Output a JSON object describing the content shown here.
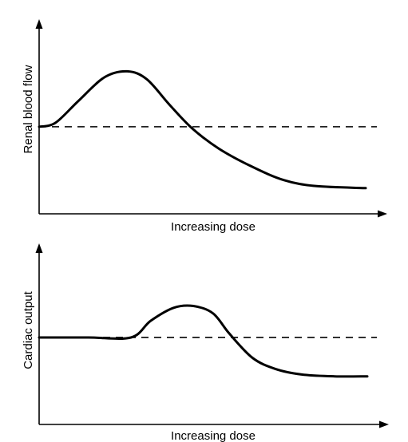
{
  "chart_data": [
    {
      "type": "line",
      "xlabel": "Increasing dose",
      "ylabel": "Renal blood flow",
      "title": "",
      "grid": false,
      "x_ticks": "none",
      "y_ticks": "none",
      "xlim": [
        0,
        1
      ],
      "ylim": [
        0,
        1
      ],
      "baseline": 0.44,
      "series": [
        {
          "style": "solid",
          "x": [
            0,
            0.05,
            0.12,
            0.2,
            0.27,
            0.33,
            0.4,
            0.47,
            0.55,
            0.65,
            0.75,
            0.85,
            1.0
          ],
          "values": [
            0.44,
            0.46,
            0.57,
            0.69,
            0.72,
            0.68,
            0.55,
            0.43,
            0.33,
            0.24,
            0.17,
            0.14,
            0.13
          ]
        }
      ]
    },
    {
      "type": "line",
      "xlabel": "Increasing dose",
      "ylabel": "Cardiac output",
      "title": "",
      "grid": false,
      "x_ticks": "none",
      "y_ticks": "none",
      "xlim": [
        0,
        1
      ],
      "ylim": [
        0,
        1
      ],
      "baseline": 0.47,
      "series": [
        {
          "style": "solid",
          "x": [
            0,
            0.15,
            0.28,
            0.34,
            0.41,
            0.47,
            0.53,
            0.58,
            0.65,
            0.72,
            0.8,
            0.9,
            1.0
          ],
          "values": [
            0.47,
            0.47,
            0.47,
            0.56,
            0.63,
            0.64,
            0.6,
            0.49,
            0.36,
            0.3,
            0.27,
            0.26,
            0.26
          ]
        }
      ]
    }
  ]
}
